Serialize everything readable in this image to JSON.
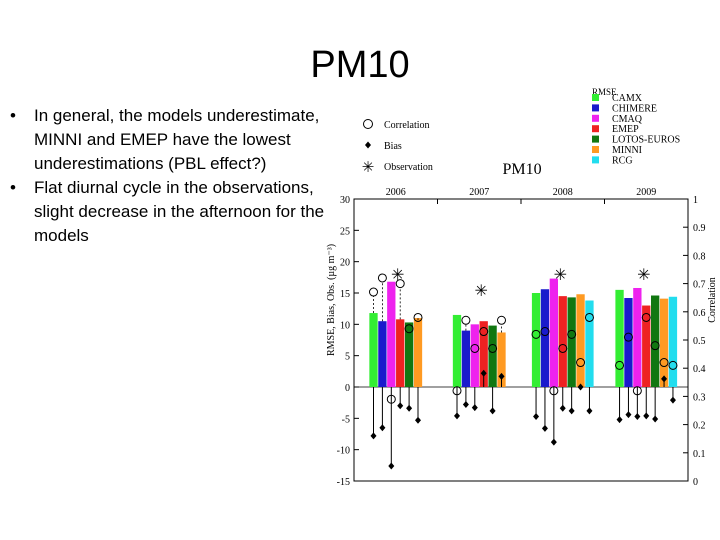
{
  "slide": {
    "title": "PM10",
    "bullets": [
      {
        "marker": "•",
        "text": "In general, the models underestimate, MINNI and EMEP have the lowest underestimations (PBL effect?)"
      },
      {
        "marker": "•",
        "text": "Flat diurnal cycle in the observations, slight decrease in the afternoon for the models"
      }
    ]
  },
  "chart_data": {
    "type": "bar",
    "title": "PM10",
    "ylabel": "RMSE, Bias, Obs. (µg m⁻³)",
    "ylabel_right": "Correlation",
    "ylim": [
      -15,
      30
    ],
    "ylim_right": [
      0,
      1
    ],
    "yticks": [
      -15,
      -10,
      -5,
      0,
      5,
      10,
      15,
      20,
      25,
      30
    ],
    "yticks_right": [
      "0",
      "0.1",
      "0.2",
      "0.3",
      "0.4",
      "0.5",
      "0.6",
      "0.7",
      "0.8",
      "0.9",
      "1"
    ],
    "categories": [
      "2006",
      "2007",
      "2008",
      "2009"
    ],
    "rmse_legend_title": "RMSE",
    "marker_legend": [
      {
        "symbol": "circle",
        "label": "Correlation"
      },
      {
        "symbol": "diamond",
        "label": "Bias"
      },
      {
        "symbol": "star",
        "label": "Observation"
      }
    ],
    "series": [
      {
        "name": "CAMX",
        "color": "#33ee33",
        "rmse": [
          11.8,
          11.5,
          15.0,
          15.5
        ],
        "bias": [
          -7.8,
          -4.6,
          -4.7,
          -5.2
        ],
        "correlation": [
          0.67,
          0.32,
          0.52,
          0.41
        ]
      },
      {
        "name": "CHIMERE",
        "color": "#1a1acc",
        "rmse": [
          10.5,
          9.0,
          15.6,
          14.2
        ],
        "bias": [
          -6.5,
          -2.8,
          -6.6,
          -4.4
        ],
        "correlation": [
          0.72,
          0.57,
          0.53,
          0.51
        ]
      },
      {
        "name": "CMAQ",
        "color": "#ee22ee",
        "rmse": [
          16.8,
          10.0,
          17.3,
          15.8
        ],
        "bias": [
          -12.6,
          -3.3,
          -8.8,
          -4.7
        ],
        "correlation": [
          0.29,
          0.47,
          0.32,
          0.32
        ]
      },
      {
        "name": "EMEP",
        "color": "#ee2222",
        "rmse": [
          10.8,
          10.5,
          14.5,
          13.0
        ],
        "bias": [
          -3.0,
          2.2,
          -3.4,
          -4.6
        ],
        "correlation": [
          0.7,
          0.53,
          0.47,
          0.58
        ]
      },
      {
        "name": "LOTOS-EUROS",
        "color": "#117711",
        "rmse": [
          10.3,
          9.8,
          14.3,
          14.6
        ],
        "bias": [
          -3.4,
          -3.8,
          -3.8,
          -5.1
        ],
        "correlation": [
          0.54,
          0.47,
          0.52,
          0.48
        ]
      },
      {
        "name": "MINNI",
        "color": "#ff9a22",
        "rmse": [
          11.0,
          8.7,
          14.8,
          14.1
        ],
        "bias": [
          -5.3,
          1.7,
          0.0,
          1.3
        ],
        "correlation": [
          0.58,
          0.57,
          0.42,
          0.42
        ]
      },
      {
        "name": "RCG",
        "color": "#22ddee",
        "rmse": [
          null,
          null,
          13.8,
          14.4
        ],
        "bias": [
          null,
          null,
          -3.8,
          -2.1
        ],
        "correlation": [
          null,
          null,
          0.58,
          0.41
        ]
      }
    ],
    "observation": [
      18.0,
      15.5,
      18.0,
      18.0
    ]
  }
}
